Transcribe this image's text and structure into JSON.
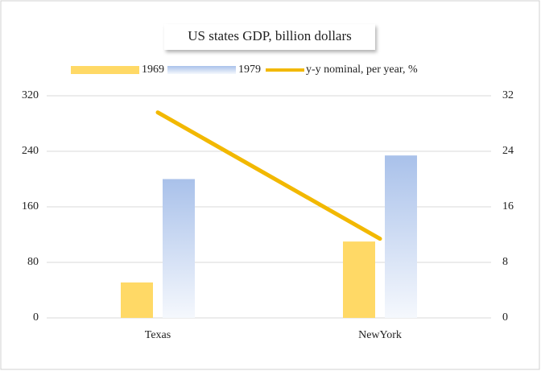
{
  "chart_data": {
    "type": "bar",
    "title": "US states GDP, billion dollars",
    "categories": [
      "Texas",
      "NewYork"
    ],
    "series": [
      {
        "name": "1969",
        "color": "#ffd966",
        "values": [
          51,
          110
        ]
      },
      {
        "name": "1979",
        "color": "#a9c1ea",
        "values": [
          200,
          234
        ]
      },
      {
        "name": "y-y nominal, per year, %",
        "color": "#f2b800",
        "type": "line",
        "axis": "y2",
        "values": [
          29.6,
          11.4
        ]
      }
    ],
    "ylim": [
      0,
      320
    ],
    "yticks": [
      0,
      80,
      160,
      240,
      320
    ],
    "y2lim": [
      0,
      32
    ],
    "y2ticks": [
      0,
      8,
      16,
      24,
      32
    ],
    "grid": true,
    "legend": "top"
  }
}
